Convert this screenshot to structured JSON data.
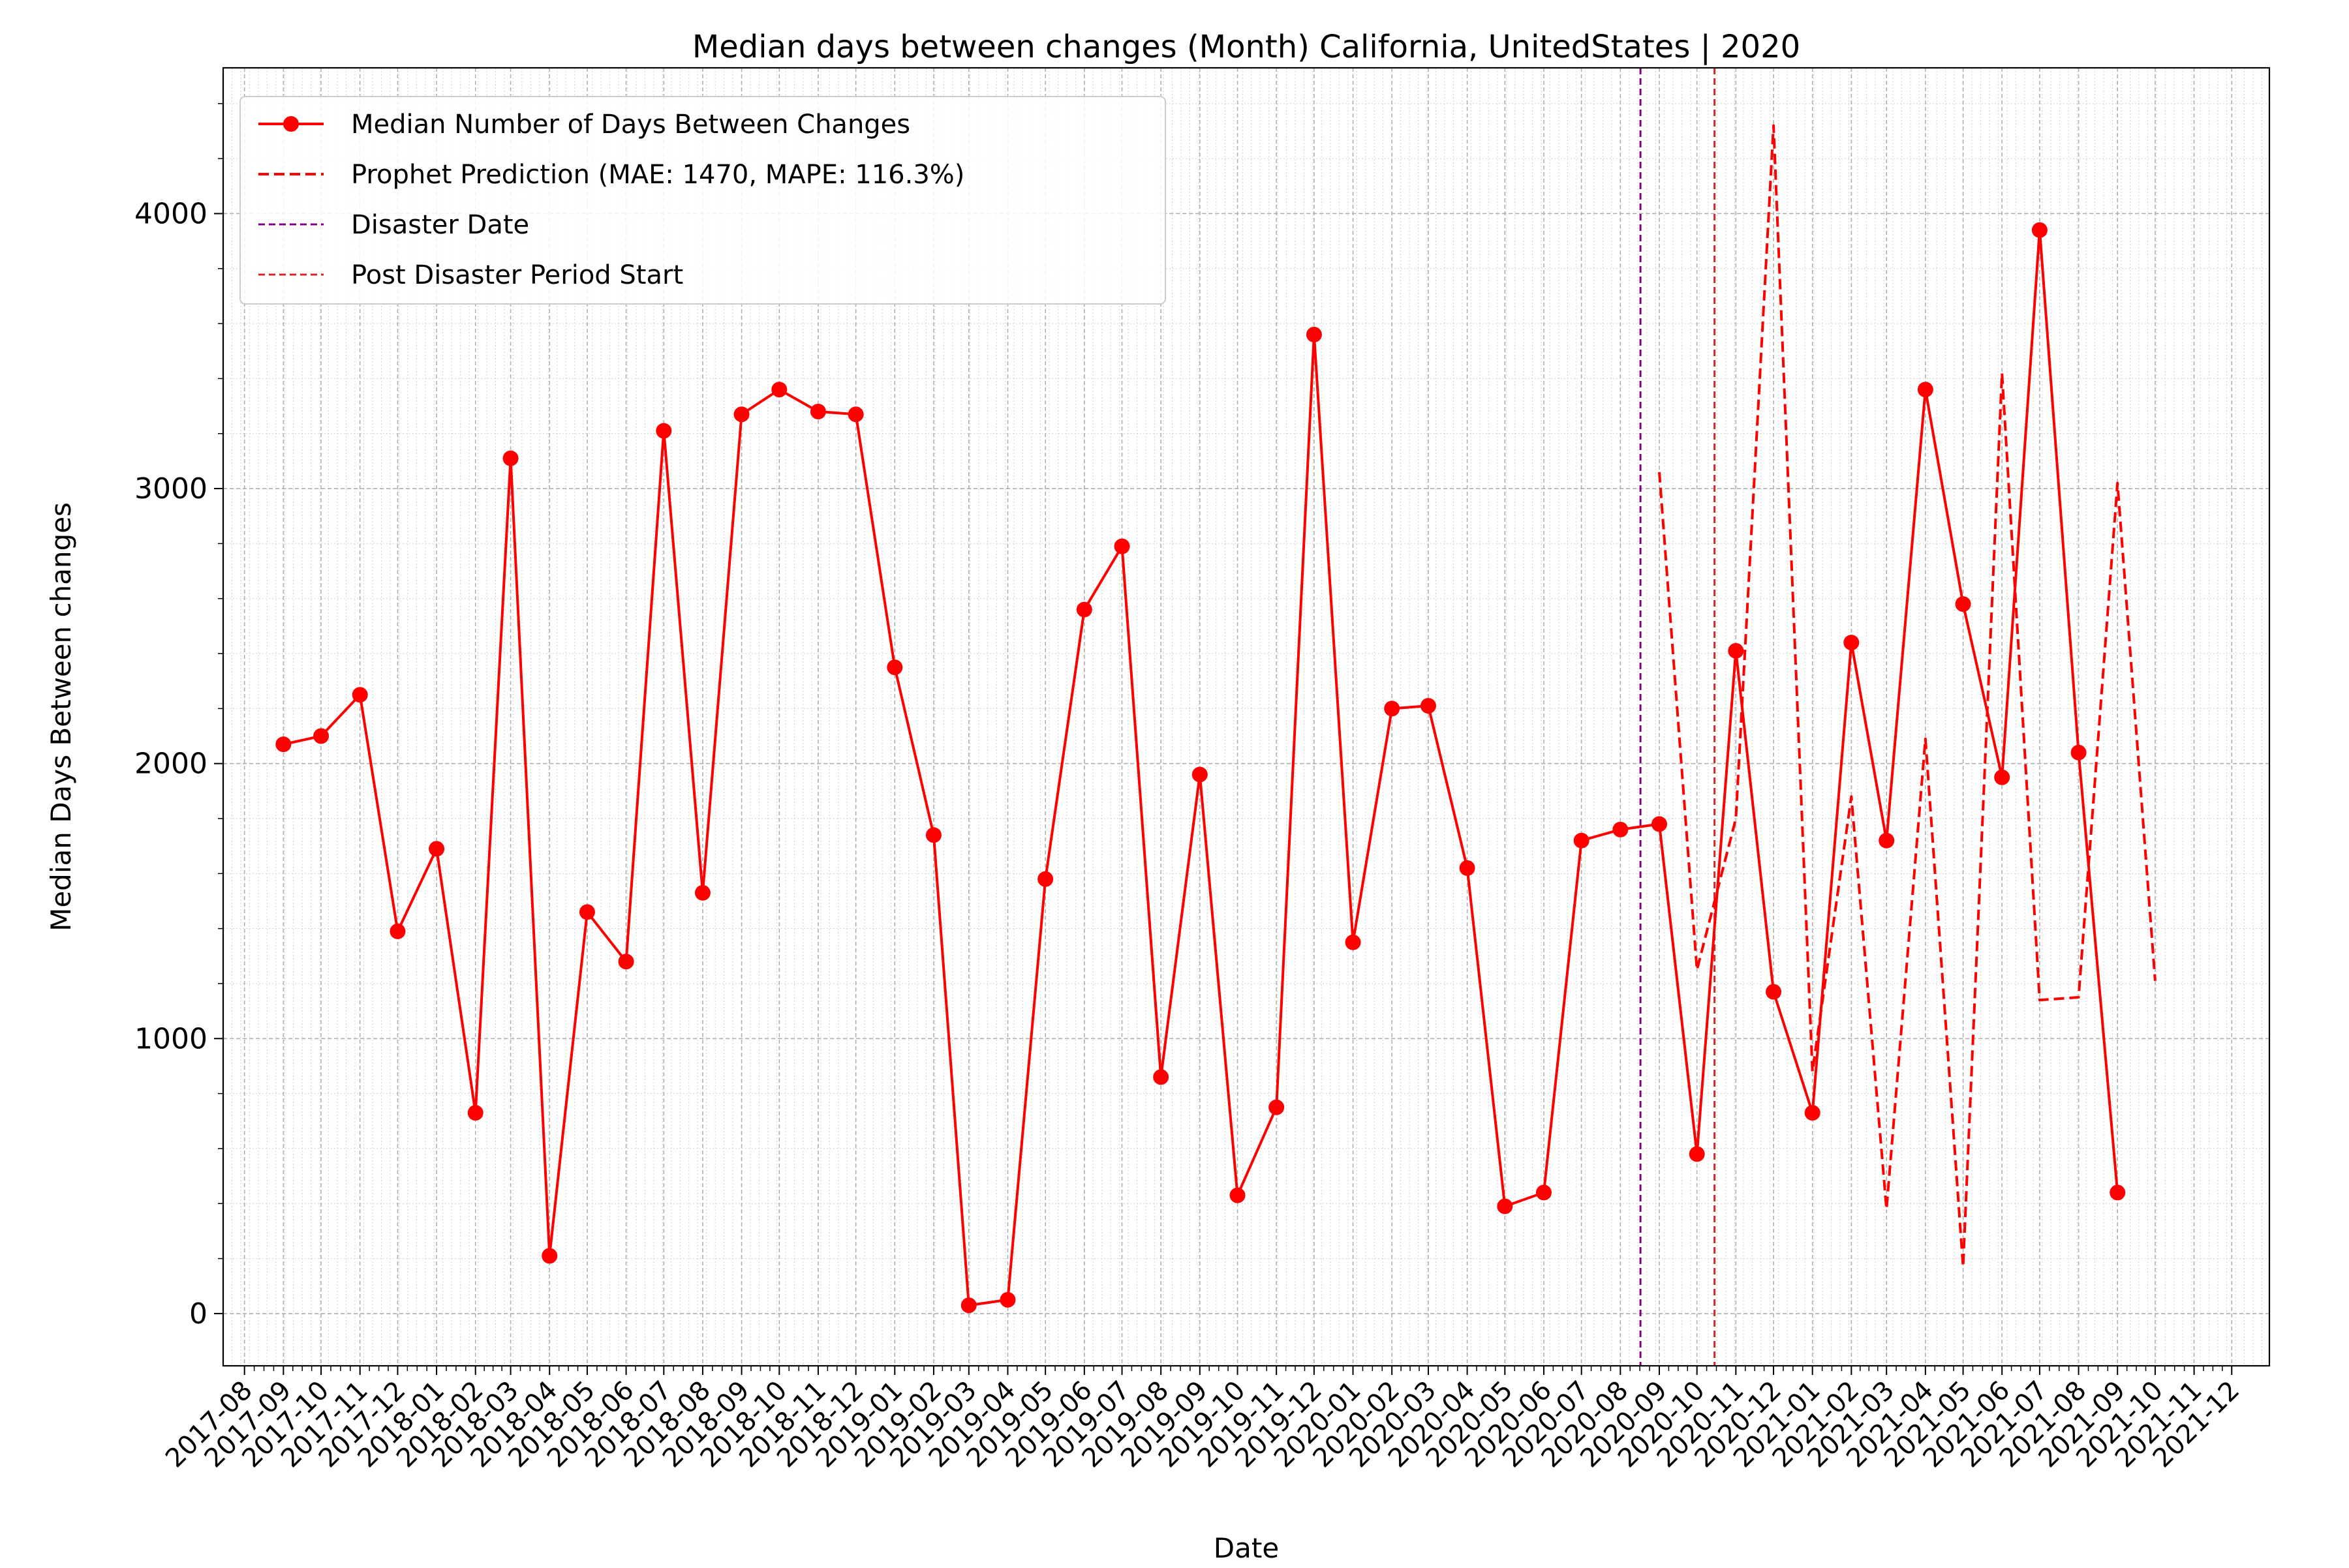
{
  "chart_data": {
    "type": "line",
    "title": "Median days between changes (Month) California, UnitedStates | 2020",
    "xlabel": "Date",
    "ylabel": "Median Days Between changes",
    "x_ticks": [
      "2017-08",
      "2017-09",
      "2017-10",
      "2017-11",
      "2017-12",
      "2018-01",
      "2018-02",
      "2018-03",
      "2018-04",
      "2018-05",
      "2018-06",
      "2018-07",
      "2018-08",
      "2018-09",
      "2018-10",
      "2018-11",
      "2018-12",
      "2019-01",
      "2019-02",
      "2019-03",
      "2019-04",
      "2019-05",
      "2019-06",
      "2019-07",
      "2019-08",
      "2019-09",
      "2019-10",
      "2019-11",
      "2019-12",
      "2020-01",
      "2020-02",
      "2020-03",
      "2020-04",
      "2020-05",
      "2020-06",
      "2020-07",
      "2020-08",
      "2020-09",
      "2020-10",
      "2020-11",
      "2020-12",
      "2021-01",
      "2021-02",
      "2021-03",
      "2021-04",
      "2021-05",
      "2021-06",
      "2021-07",
      "2021-08",
      "2021-09",
      "2021-10",
      "2021-11",
      "2021-12"
    ],
    "xlim": [
      "2017-07-15",
      "2021-12-31"
    ],
    "y_ticks": [
      0,
      1000,
      2000,
      3000,
      4000
    ],
    "ylim": [
      -190,
      4530
    ],
    "grid": true,
    "legend_position": "top-left",
    "series": [
      {
        "name": "Median Number of Days Between Changes",
        "color": "#ff0000",
        "style": "solid-marker",
        "x": [
          "2017-09-01",
          "2017-10-01",
          "2017-11-01",
          "2017-12-01",
          "2018-01-01",
          "2018-02-01",
          "2018-03-01",
          "2018-04-01",
          "2018-05-01",
          "2018-06-01",
          "2018-07-01",
          "2018-08-01",
          "2018-09-01",
          "2018-10-01",
          "2018-11-01",
          "2018-12-01",
          "2019-01-01",
          "2019-02-01",
          "2019-03-01",
          "2019-04-01",
          "2019-05-01",
          "2019-06-01",
          "2019-07-01",
          "2019-08-01",
          "2019-09-01",
          "2019-10-01",
          "2019-11-01",
          "2019-12-01",
          "2020-01-01",
          "2020-02-01",
          "2020-03-01",
          "2020-04-01",
          "2020-05-01",
          "2020-06-01",
          "2020-07-01",
          "2020-08-01",
          "2020-09-01",
          "2020-10-01",
          "2020-11-01",
          "2020-12-01",
          "2021-01-01",
          "2021-02-01",
          "2021-03-01",
          "2021-04-01",
          "2021-05-01",
          "2021-06-01",
          "2021-07-01",
          "2021-08-01",
          "2021-09-01"
        ],
        "values": [
          2070,
          2100,
          2250,
          1390,
          1690,
          730,
          3110,
          210,
          1460,
          1280,
          3210,
          1530,
          3270,
          3360,
          3280,
          3270,
          2350,
          1740,
          30,
          50,
          1580,
          2560,
          2790,
          860,
          1960,
          430,
          750,
          3560,
          1350,
          2200,
          2210,
          1620,
          390,
          440,
          1720,
          1760,
          1780,
          580,
          2410,
          1170,
          730,
          2440,
          1720,
          3360,
          2580,
          1950,
          3940,
          2040,
          440
        ]
      },
      {
        "name": "Prophet Prediction (MAE: 1470, MAPE: 116.3%)",
        "color": "#ff0000",
        "style": "dashed",
        "x": [
          "2020-09-01",
          "2020-10-01",
          "2020-11-01",
          "2020-12-01",
          "2021-01-01",
          "2021-02-01",
          "2021-03-01",
          "2021-04-01",
          "2021-05-01",
          "2021-06-01",
          "2021-07-01",
          "2021-08-01",
          "2021-09-01",
          "2021-10-01"
        ],
        "values": [
          3060,
          1250,
          1800,
          4320,
          880,
          1880,
          380,
          2090,
          170,
          3420,
          1140,
          1150,
          3020,
          1210
        ]
      }
    ],
    "vlines": [
      {
        "name": "Disaster Date",
        "x": "2020-08-17",
        "color": "#800080",
        "style": "dashed"
      },
      {
        "name": "Post Disaster Period Start",
        "x": "2020-10-15",
        "color": "#d62728",
        "style": "dashed"
      }
    ]
  }
}
